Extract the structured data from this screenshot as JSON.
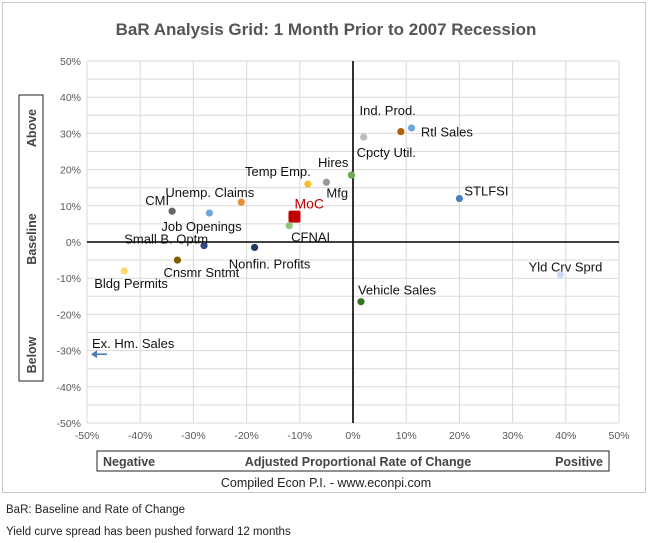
{
  "chart_data": {
    "type": "scatter",
    "title": "BaR Analysis Grid: 1 Month Prior to 2007 Recession",
    "xlabel": "Adjusted Proportional Rate of Change",
    "x_left_label": "Negative",
    "x_right_label": "Positive",
    "y_top_label": "Above",
    "y_mid_label": "Baseline",
    "y_bottom_label": "Below",
    "source": "Compiled Econ P.I. - www.econpi.com",
    "xlim": [
      -0.5,
      0.5
    ],
    "ylim": [
      -0.5,
      0.5
    ],
    "x_ticks": [
      "-50%",
      "-40%",
      "-30%",
      "-20%",
      "-10%",
      "0%",
      "10%",
      "20%",
      "30%",
      "40%",
      "50%"
    ],
    "y_ticks": [
      "50%",
      "40%",
      "30%",
      "20%",
      "10%",
      "0%",
      "-10%",
      "-20%",
      "-30%",
      "-40%",
      "-50%"
    ],
    "grid": true,
    "points": [
      {
        "label": "Ind. Prod.",
        "x": 0.11,
        "y": 0.315,
        "color": "#6fa8dc"
      },
      {
        "label": "Rtl Sales",
        "x": 0.09,
        "y": 0.305,
        "color": "#b45f06"
      },
      {
        "label": "Cpcty Util.",
        "x": 0.02,
        "y": 0.29,
        "color": "#bdbdbd"
      },
      {
        "label": "STLFSI",
        "x": 0.2,
        "y": 0.12,
        "color": "#4a7ebb"
      },
      {
        "label": "Hires",
        "x": -0.003,
        "y": 0.185,
        "color": "#6aa84f"
      },
      {
        "label": "Temp Emp.",
        "x": -0.085,
        "y": 0.16,
        "color": "#f1c232"
      },
      {
        "label": "Mfg",
        "x": -0.05,
        "y": 0.165,
        "color": "#999999"
      },
      {
        "label": "Unemp. Claims",
        "x": -0.21,
        "y": 0.11,
        "color": "#e69138"
      },
      {
        "label": "CMI",
        "x": -0.34,
        "y": 0.085,
        "color": "#666666"
      },
      {
        "label": "Job Openings",
        "x": -0.27,
        "y": 0.08,
        "color": "#6fa8dc"
      },
      {
        "label": "MoC",
        "x": -0.11,
        "y": 0.07,
        "color": "#c00000"
      },
      {
        "label": "CFNAI",
        "x": -0.12,
        "y": 0.045,
        "color": "#93c47d"
      },
      {
        "label": "Small B. Optm",
        "x": -0.28,
        "y": -0.01,
        "color": "#2e4b8a"
      },
      {
        "label": "Nonfin. Profits",
        "x": -0.185,
        "y": -0.015,
        "color": "#1f3864"
      },
      {
        "label": "Cnsmr Sntmt",
        "x": -0.33,
        "y": -0.05,
        "color": "#7f6000"
      },
      {
        "label": "Bldg Permits",
        "x": -0.43,
        "y": -0.08,
        "color": "#ffd966"
      },
      {
        "label": "Yld Crv Sprd",
        "x": 0.39,
        "y": -0.09,
        "color": "#c9daf8"
      },
      {
        "label": "Vehicle Sales",
        "x": 0.015,
        "y": -0.165,
        "color": "#38761d"
      },
      {
        "label": "Ex. Hm. Sales",
        "x": -0.5,
        "y": -0.31,
        "color": "#4a7ebb"
      }
    ]
  },
  "notes": {
    "line1": "BaR: Baseline and Rate of Change",
    "line2": "Yield curve spread has been pushed forward 12 months"
  }
}
